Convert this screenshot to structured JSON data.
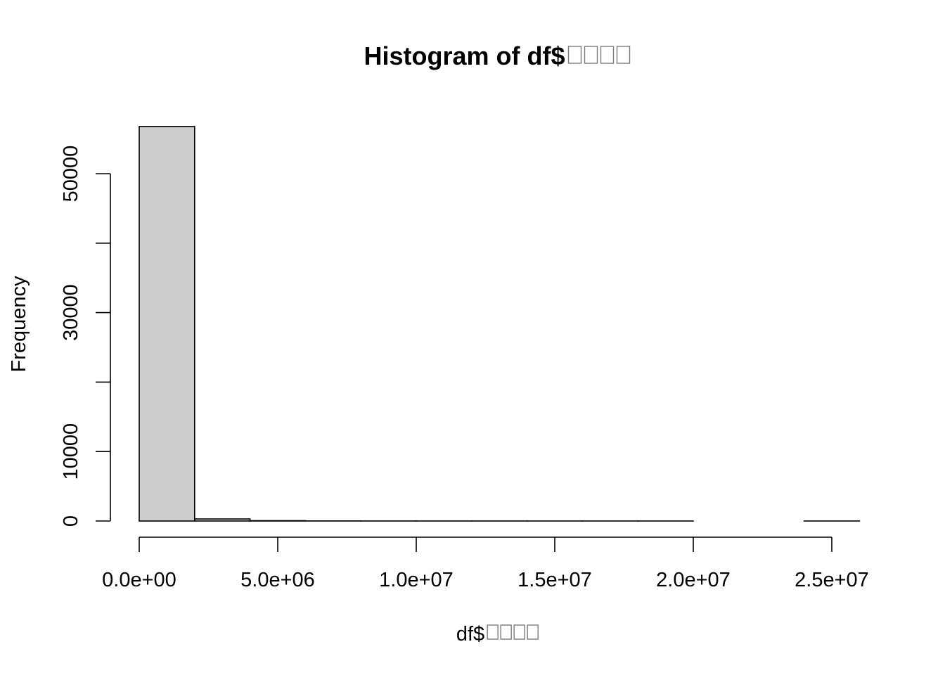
{
  "chart_data": {
    "type": "bar",
    "title": "Histogram of df$",
    "xlabel": "df$",
    "ylabel": "Frequency",
    "title_missing_glyphs": 4,
    "xlabel_missing_glyphs": 4,
    "bins": [
      {
        "start": 0,
        "end": 2000000,
        "count": 56800
      },
      {
        "start": 2000000,
        "end": 4000000,
        "count": 300
      },
      {
        "start": 4000000,
        "end": 6000000,
        "count": 50
      },
      {
        "start": 6000000,
        "end": 8000000,
        "count": 12
      },
      {
        "start": 8000000,
        "end": 10000000,
        "count": 6
      },
      {
        "start": 10000000,
        "end": 12000000,
        "count": 3
      },
      {
        "start": 12000000,
        "end": 14000000,
        "count": 2
      },
      {
        "start": 14000000,
        "end": 16000000,
        "count": 1
      },
      {
        "start": 16000000,
        "end": 18000000,
        "count": 1
      },
      {
        "start": 18000000,
        "end": 20000000,
        "count": 1
      },
      {
        "start": 20000000,
        "end": 22000000,
        "count": 0
      },
      {
        "start": 22000000,
        "end": 24000000,
        "count": 0
      },
      {
        "start": 24000000,
        "end": 26000000,
        "count": 1
      }
    ],
    "x_ticks": [
      0,
      5000000,
      10000000,
      15000000,
      20000000,
      25000000
    ],
    "x_tick_labels": [
      "0.0e+00",
      "5.0e+06",
      "1.0e+07",
      "1.5e+07",
      "2.0e+07",
      "2.5e+07"
    ],
    "y_ticks": [
      0,
      10000,
      20000,
      30000,
      40000,
      50000
    ],
    "y_tick_labels": [
      "0",
      "10000",
      "",
      "30000",
      "",
      "50000"
    ],
    "xlim": [
      0,
      26000000
    ],
    "ylim": [
      0,
      57000
    ],
    "grid": false,
    "bar_fill": "#cccccc",
    "bar_stroke": "#000000"
  }
}
